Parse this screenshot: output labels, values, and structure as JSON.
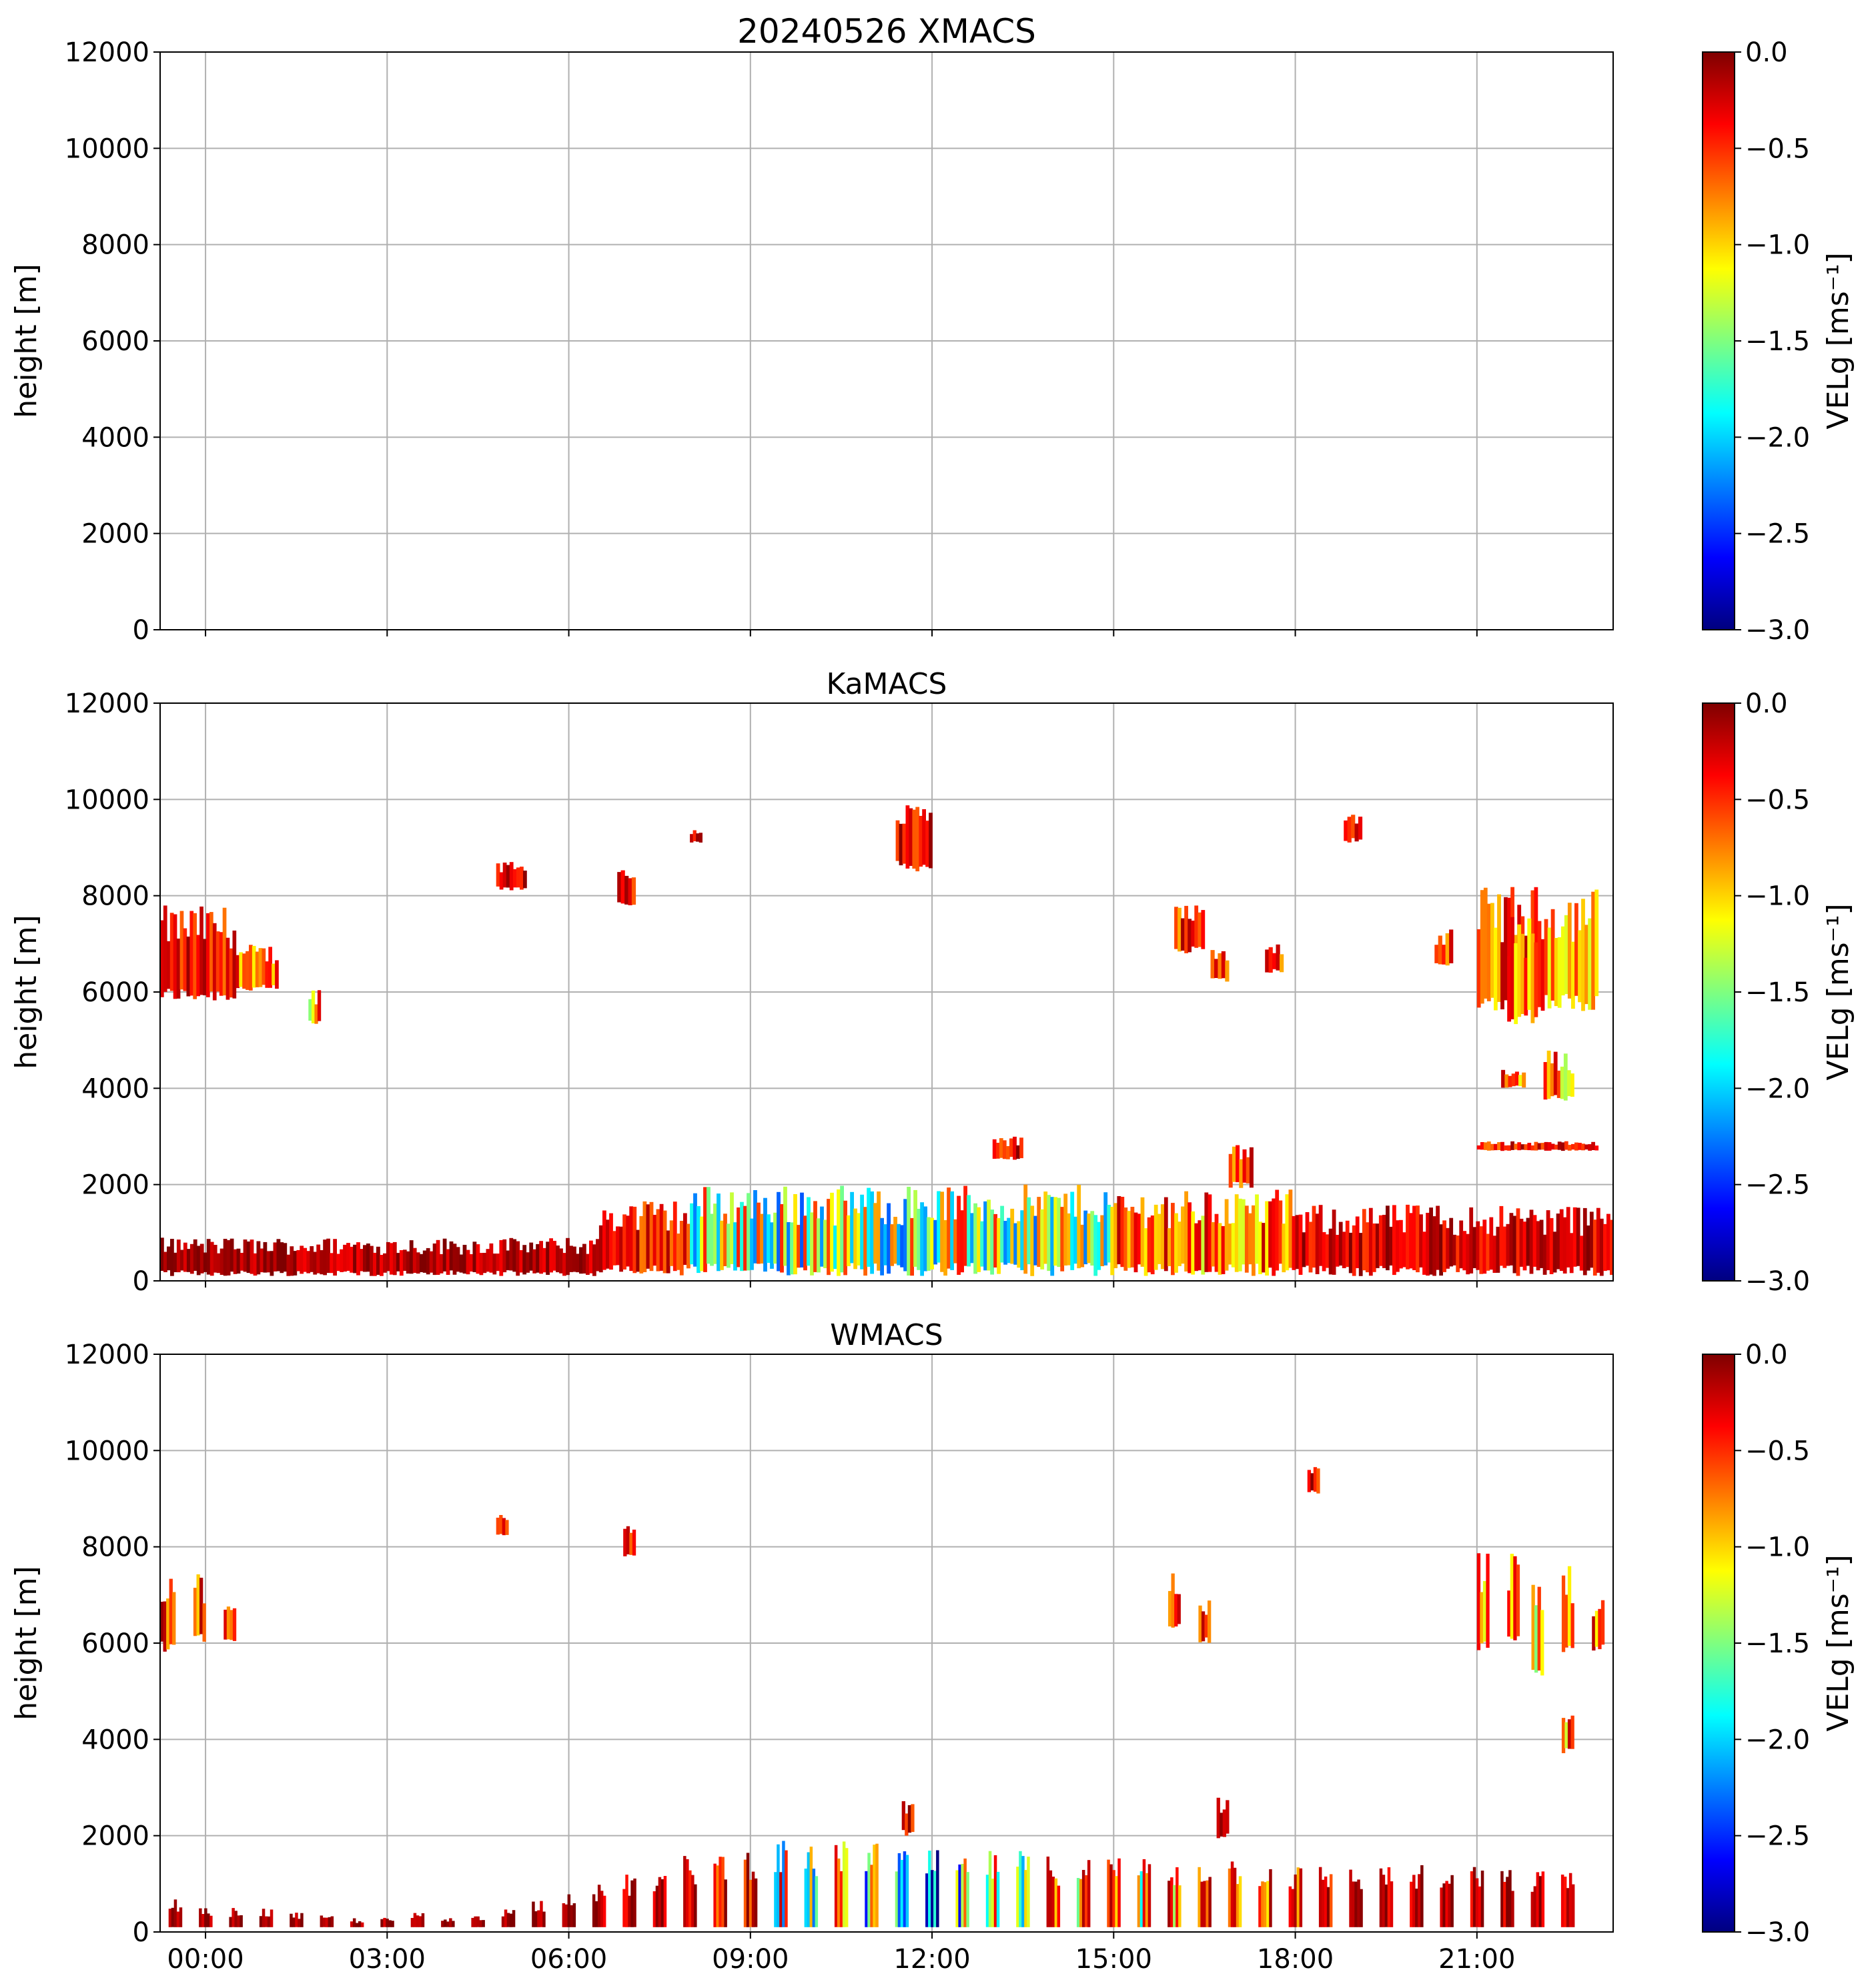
{
  "figure_title": "20240526 XMACS",
  "colors": {
    "grid": "#b0b0b0",
    "axis": "#000000",
    "colormap": [
      "#00007f",
      "#0000ff",
      "#007fff",
      "#00ffff",
      "#7fff7f",
      "#ffff00",
      "#ff7f00",
      "#ff0000",
      "#7f0000"
    ]
  },
  "chart_data": [
    {
      "type": "heatmap",
      "title": "20240526 XMACS",
      "xlabel": "",
      "ylabel": "height [m]",
      "ylim": [
        0,
        12000
      ],
      "xlim_hours": [
        -0.75,
        23.25
      ],
      "yticks": [
        "0",
        "2000",
        "4000",
        "6000",
        "8000",
        "10000",
        "12000"
      ],
      "xticks": [],
      "grid": true,
      "colorbar": {
        "label": "VELg [ms⁻¹]",
        "range": [
          -3.0,
          0.0
        ],
        "ticks": [
          "0.0",
          "−0.5",
          "−1.0",
          "−1.5",
          "−2.0",
          "−2.5",
          "−3.0"
        ]
      },
      "echoes": []
    },
    {
      "type": "heatmap",
      "title": "KaMACS",
      "xlabel": "",
      "ylabel": "height [m]",
      "ylim": [
        0,
        12000
      ],
      "xlim_hours": [
        -0.75,
        23.25
      ],
      "yticks": [
        "0",
        "2000",
        "4000",
        "6000",
        "8000",
        "10000",
        "12000"
      ],
      "xticks": [],
      "grid": true,
      "colorbar": {
        "label": "VELg [ms⁻¹]",
        "range": [
          -3.0,
          0.0
        ],
        "ticks": [
          "0.0",
          "−0.5",
          "−1.0",
          "−1.5",
          "−2.0",
          "−2.5",
          "−3.0"
        ]
      },
      "echoes": [
        {
          "t0": -0.75,
          "t1": 0.5,
          "h0": 5800,
          "h1": 7800,
          "v": -0.3
        },
        {
          "t0": 0.5,
          "t1": 1.2,
          "h0": 6000,
          "h1": 7000,
          "v": -0.5
        },
        {
          "t0": 1.7,
          "t1": 1.9,
          "h0": 5300,
          "h1": 6100,
          "v": -0.9
        },
        {
          "t0": 4.8,
          "t1": 5.3,
          "h0": 8100,
          "h1": 8800,
          "v": -0.3
        },
        {
          "t0": 6.8,
          "t1": 7.1,
          "h0": 7800,
          "h1": 8600,
          "v": -0.3
        },
        {
          "t0": 8.0,
          "t1": 8.2,
          "h0": 9100,
          "h1": 9400,
          "v": -0.3
        },
        {
          "t0": 11.4,
          "t1": 12.0,
          "h0": 8500,
          "h1": 10000,
          "v": -0.3
        },
        {
          "t0": 16.0,
          "t1": 16.5,
          "h0": 6800,
          "h1": 7800,
          "v": -0.4
        },
        {
          "t0": 17.5,
          "t1": 17.8,
          "h0": 6400,
          "h1": 7000,
          "v": -0.5
        },
        {
          "t0": 16.6,
          "t1": 16.9,
          "h0": 6200,
          "h1": 6900,
          "v": -0.4
        },
        {
          "t0": 18.8,
          "t1": 19.1,
          "h0": 9100,
          "h1": 9800,
          "v": -0.3
        },
        {
          "t0": 20.3,
          "t1": 20.6,
          "h0": 6500,
          "h1": 7300,
          "v": -0.4
        },
        {
          "t0": 21.0,
          "t1": 23.0,
          "h0": 5600,
          "h1": 8200,
          "v": -0.6
        },
        {
          "t0": 21.5,
          "t1": 22.0,
          "h0": 5300,
          "h1": 7800,
          "v": -0.8
        },
        {
          "t0": 22.1,
          "t1": 22.6,
          "h0": 3700,
          "h1": 4800,
          "v": -0.7
        },
        {
          "t0": 21.4,
          "t1": 21.8,
          "h0": 4000,
          "h1": 4400,
          "v": -0.6
        },
        {
          "t0": 21.0,
          "t1": 23.0,
          "h0": 2700,
          "h1": 2900,
          "v": -0.3
        },
        {
          "t0": -0.75,
          "t1": 6.5,
          "h0": 100,
          "h1": 900,
          "v": -0.1
        },
        {
          "t0": 6.5,
          "t1": 8.0,
          "h0": 100,
          "h1": 1700,
          "v": -0.3
        },
        {
          "t0": 8.0,
          "t1": 15.0,
          "h0": 100,
          "h1": 2000,
          "v": -1.2
        },
        {
          "t0": 15.0,
          "t1": 18.0,
          "h0": 100,
          "h1": 1900,
          "v": -0.6
        },
        {
          "t0": 18.0,
          "t1": 23.25,
          "h0": 100,
          "h1": 1600,
          "v": -0.2
        },
        {
          "t0": 13.0,
          "t1": 13.5,
          "h0": 2500,
          "h1": 3000,
          "v": -0.3
        },
        {
          "t0": 16.9,
          "t1": 17.3,
          "h0": 1900,
          "h1": 3000,
          "v": -0.4
        }
      ]
    },
    {
      "type": "heatmap",
      "title": "WMACS",
      "xlabel": "",
      "ylabel": "height [m]",
      "ylim": [
        0,
        12000
      ],
      "xlim_hours": [
        -0.75,
        23.25
      ],
      "yticks": [
        "0",
        "2000",
        "4000",
        "6000",
        "8000",
        "10000",
        "12000"
      ],
      "xticks": [
        "00:00",
        "03:00",
        "06:00",
        "09:00",
        "12:00",
        "15:00",
        "18:00",
        "21:00"
      ],
      "xtick_hours": [
        0,
        3,
        6,
        9,
        12,
        15,
        18,
        21
      ],
      "grid": true,
      "colorbar": {
        "label": "VELg [ms⁻¹]",
        "range": [
          -3.0,
          0.0
        ],
        "ticks": [
          "0.0",
          "−0.5",
          "−1.0",
          "−1.5",
          "−2.0",
          "−2.5",
          "−3.0"
        ]
      },
      "echoes": [
        {
          "t0": -0.75,
          "t1": -0.5,
          "h0": 5800,
          "h1": 7600,
          "v": -0.4
        },
        {
          "t0": -0.2,
          "t1": 0.0,
          "h0": 6000,
          "h1": 7500,
          "v": -0.5
        },
        {
          "t0": 0.3,
          "t1": 0.5,
          "h0": 6000,
          "h1": 6800,
          "v": -0.6
        },
        {
          "t0": 4.8,
          "t1": 5.0,
          "h0": 8200,
          "h1": 8700,
          "v": -0.3
        },
        {
          "t0": 6.9,
          "t1": 7.1,
          "h0": 7800,
          "h1": 8500,
          "v": -0.3
        },
        {
          "t0": 15.9,
          "t1": 16.1,
          "h0": 6300,
          "h1": 7500,
          "v": -0.4
        },
        {
          "t0": 16.4,
          "t1": 16.6,
          "h0": 6000,
          "h1": 7000,
          "v": -0.4
        },
        {
          "t0": 18.2,
          "t1": 18.4,
          "h0": 9100,
          "h1": 9700,
          "v": -0.3
        },
        {
          "t0": 21.0,
          "t1": 21.2,
          "h0": 5700,
          "h1": 8000,
          "v": -0.6
        },
        {
          "t0": 21.5,
          "t1": 21.7,
          "h0": 5800,
          "h1": 8100,
          "v": -0.6
        },
        {
          "t0": 21.9,
          "t1": 22.1,
          "h0": 5300,
          "h1": 7500,
          "v": -0.8
        },
        {
          "t0": 22.4,
          "t1": 22.6,
          "h0": 5800,
          "h1": 7600,
          "v": -0.5
        },
        {
          "t0": 22.9,
          "t1": 23.1,
          "h0": 5800,
          "h1": 7000,
          "v": -0.5
        },
        {
          "t0": 22.4,
          "t1": 22.6,
          "h0": 3700,
          "h1": 4600,
          "v": -0.7
        },
        {
          "t0": 16.7,
          "t1": 16.9,
          "h0": 1900,
          "h1": 2900,
          "v": -0.3
        },
        {
          "t0": 11.5,
          "t1": 11.7,
          "h0": 2000,
          "h1": 2800,
          "v": -0.3
        }
      ],
      "columns": {
        "start_hour": -0.75,
        "step_hours": 0.5,
        "count": 47,
        "tops_m": [
          700,
          500,
          500,
          500,
          400,
          350,
          300,
          300,
          400,
          300,
          400,
          500,
          700,
          900,
          1000,
          1200,
          1300,
          1600,
          1700,
          1800,
          1900,
          1800,
          1900,
          2000,
          1700,
          1700,
          1600,
          1700,
          1700,
          1600,
          1600,
          1600,
          1600,
          1500,
          1600,
          1600,
          1500,
          1400,
          1400,
          1400,
          1400,
          1400,
          1300,
          1400,
          1300,
          1300,
          1400
        ],
        "mean_vel": [
          -0.1,
          -0.1,
          -0.1,
          -0.1,
          -0.1,
          -0.1,
          -0.1,
          -0.1,
          -0.1,
          -0.1,
          -0.1,
          -0.1,
          -0.1,
          -0.1,
          -0.2,
          -0.2,
          -0.3,
          -0.3,
          -0.4,
          -0.5,
          -1.2,
          -1.4,
          -1.3,
          -1.5,
          -1.6,
          -1.8,
          -1.5,
          -1.3,
          -1.2,
          -1.2,
          -1.1,
          -1.0,
          -1.0,
          -0.8,
          -0.8,
          -0.6,
          -0.6,
          -0.5,
          -0.3,
          -0.2,
          -0.2,
          -0.2,
          -0.2,
          -0.2,
          -0.2,
          -0.2,
          -0.2
        ]
      }
    }
  ]
}
